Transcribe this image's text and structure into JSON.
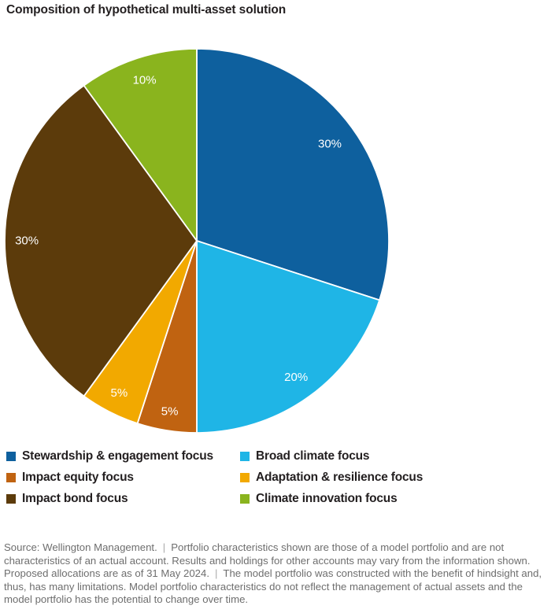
{
  "title": "Composition of hypothetical multi-asset solution",
  "chart_data": {
    "type": "pie",
    "title": "Composition of hypothetical multi-asset solution",
    "labels": [
      "Stewardship & engagement focus",
      "Broad climate focus",
      "Impact equity focus",
      "Adaptation & resilience focus",
      "Impact bond focus",
      "Climate innovation focus"
    ],
    "values": [
      30,
      20,
      5,
      5,
      30,
      10
    ],
    "slice_labels": [
      "30%",
      "20%",
      "5%",
      "5%",
      "30%",
      "10%"
    ],
    "colors": [
      "#0E609E",
      "#1FB5E6",
      "#C06311",
      "#F2A900",
      "#5C3B0B",
      "#8AB41E"
    ],
    "slice_label_color": "#FFFFFF",
    "start_angle_deg": 0,
    "direction": "clockwise",
    "legend_position": "bottom",
    "legend_columns": 2
  },
  "styles": {
    "title_color": "#231F20",
    "legend_text_color": "#231F20",
    "footer_text_color": "#6E6E6E",
    "slice_stroke_color": "#FFFFFF"
  },
  "footer": {
    "separator": "|",
    "segments": [
      "Source: Wellington Management.",
      "Portfolio characteristics shown are those of a model portfolio and are not characteristics of an actual account. Results and holdings for other accounts may vary from the information shown. Proposed allocations are as of 31 May 2024.",
      "The model portfolio was constructed with the benefit of hindsight and, thus, has many limitations. Model portfolio characteristics do not reflect the management of actual assets and the model portfolio has the potential to change over time."
    ]
  }
}
